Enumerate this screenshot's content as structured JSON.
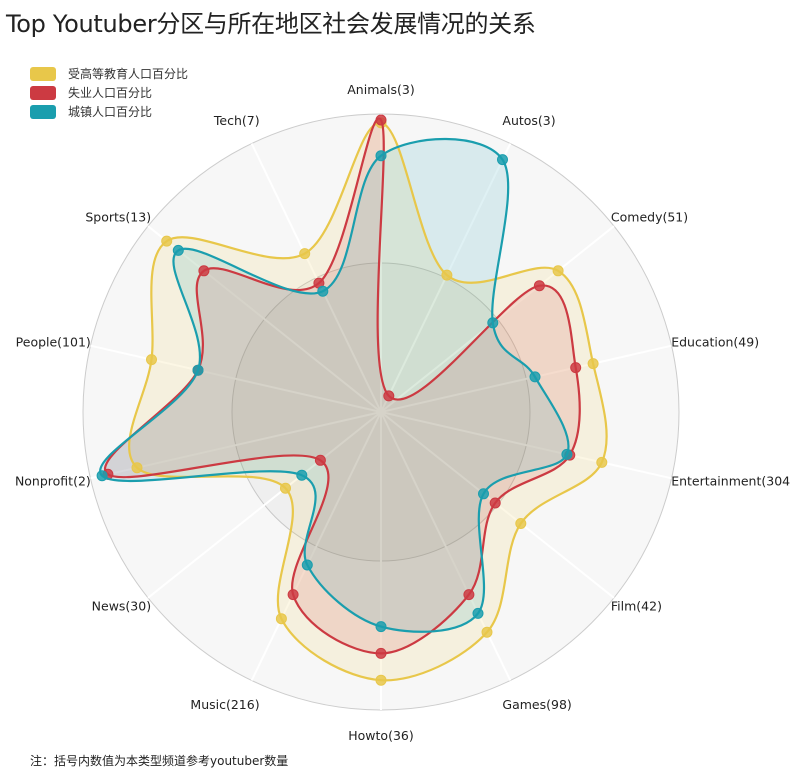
{
  "chart_data": {
    "type": "radar",
    "title": "Top Youtuber分区与所在地区社会发展情况的关系",
    "note": "注：括号内数值为本类型频道参考youtuber数量",
    "categories": [
      "Animals(3)",
      "Autos(3)",
      "Comedy(51)",
      "Education(49)",
      "Entertainment(304)",
      "Film(42)",
      "Games(98)",
      "Howto(36)",
      "Music(216)",
      "News(30)",
      "Nonprofit(2)",
      "People(101)",
      "Sports(13)",
      "Tech(7)"
    ],
    "rlim": [
      0,
      100
    ],
    "grid": true,
    "legend_position": "top-left",
    "series": [
      {
        "name": "受高等教育人口百分比",
        "color": "#e8c74a",
        "values": [
          97,
          51,
          76,
          73,
          76,
          60,
          82,
          90,
          77,
          41,
          84,
          79,
          92,
          59
        ]
      },
      {
        "name": "失业人口百分比",
        "color": "#cc3a42",
        "values": [
          98,
          6,
          68,
          67,
          65,
          49,
          68,
          81,
          68,
          26,
          94,
          63,
          76,
          48
        ]
      },
      {
        "name": "城镇人口百分比",
        "color": "#1a9eae",
        "values": [
          86,
          94,
          48,
          53,
          64,
          44,
          75,
          72,
          57,
          34,
          96,
          63,
          87,
          45
        ]
      }
    ]
  }
}
